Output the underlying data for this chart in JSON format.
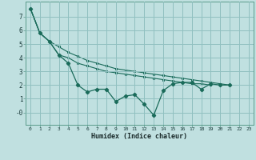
{
  "background_color": "#c0e0e0",
  "grid_color": "#90c0c0",
  "line_color": "#1a6b5a",
  "x_label": "Humidex (Indice chaleur)",
  "xlim": [
    -0.5,
    23.5
  ],
  "ylim": [
    -0.9,
    8.1
  ],
  "yticks": [
    0,
    1,
    2,
    3,
    4,
    5,
    6,
    7
  ],
  "ytick_labels": [
    "-0",
    "1",
    "2",
    "3",
    "4",
    "5",
    "6",
    "7"
  ],
  "xticks": [
    0,
    1,
    2,
    3,
    4,
    5,
    6,
    7,
    8,
    9,
    10,
    11,
    12,
    13,
    14,
    15,
    16,
    17,
    18,
    19,
    20,
    21,
    22,
    23
  ],
  "series1_x": [
    0,
    1,
    2,
    3,
    4,
    5,
    6,
    7,
    8,
    9,
    10,
    11,
    12,
    13,
    14,
    15,
    16,
    17,
    18,
    19,
    20,
    21
  ],
  "series1_y": [
    7.6,
    5.8,
    5.2,
    4.2,
    3.6,
    2.0,
    1.5,
    1.7,
    1.7,
    0.8,
    1.2,
    1.3,
    0.6,
    -0.2,
    1.6,
    2.1,
    2.2,
    2.2,
    1.7,
    2.1,
    2.0,
    2.0
  ],
  "series2_x": [
    0,
    1,
    2,
    3,
    4,
    5,
    6,
    7,
    8,
    9,
    10,
    11,
    12,
    13,
    14,
    15,
    16,
    17,
    18,
    19,
    20,
    21
  ],
  "series2_y": [
    7.6,
    5.8,
    5.2,
    4.8,
    4.4,
    4.1,
    3.8,
    3.6,
    3.4,
    3.2,
    3.1,
    3.0,
    2.9,
    2.8,
    2.7,
    2.6,
    2.5,
    2.4,
    2.3,
    2.2,
    2.1,
    2.0
  ],
  "series3_x": [
    0,
    1,
    2,
    3,
    4,
    5,
    6,
    7,
    8,
    9,
    10,
    11,
    12,
    13,
    14,
    15,
    16,
    17,
    18,
    19,
    20,
    21
  ],
  "series3_y": [
    7.6,
    5.8,
    5.2,
    4.2,
    4.0,
    3.6,
    3.4,
    3.2,
    3.0,
    2.9,
    2.8,
    2.7,
    2.6,
    2.5,
    2.4,
    2.3,
    2.2,
    2.1,
    2.1,
    2.0,
    2.0,
    2.0
  ]
}
